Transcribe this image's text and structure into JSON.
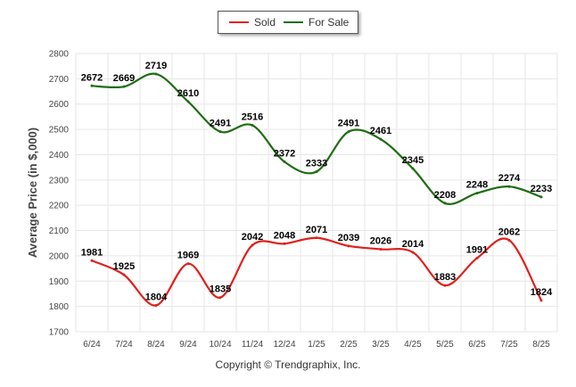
{
  "legend": {
    "sold_label": "Sold",
    "forsale_label": "For Sale"
  },
  "credit": "Copyright © Trendgraphix, Inc.",
  "colors": {
    "sold": "#e0201b",
    "forsale": "#1e6d12",
    "grid": "#e6e6e6"
  },
  "chart_data": {
    "type": "line",
    "ylabel": "Average Price (in $,000)",
    "ylim": [
      1700,
      2800
    ],
    "yticks": [
      1700,
      1800,
      1900,
      2000,
      2100,
      2200,
      2300,
      2400,
      2500,
      2600,
      2700,
      2800
    ],
    "grid": true,
    "legend_position": "top-center",
    "categories": [
      "6/24",
      "7/24",
      "8/24",
      "9/24",
      "10/24",
      "11/24",
      "12/24",
      "1/25",
      "2/25",
      "3/25",
      "4/25",
      "5/25",
      "6/25",
      "7/25",
      "8/25"
    ],
    "series": [
      {
        "name": "Sold",
        "color": "#e0201b",
        "values": [
          1981,
          1925,
          1804,
          1969,
          1835,
          2042,
          2048,
          2071,
          2039,
          2026,
          2014,
          1883,
          1991,
          2062,
          1824
        ]
      },
      {
        "name": "For Sale",
        "color": "#1e6d12",
        "values": [
          2672,
          2669,
          2719,
          2610,
          2491,
          2516,
          2372,
          2333,
          2491,
          2461,
          2345,
          2208,
          2248,
          2274,
          2233
        ]
      }
    ]
  }
}
